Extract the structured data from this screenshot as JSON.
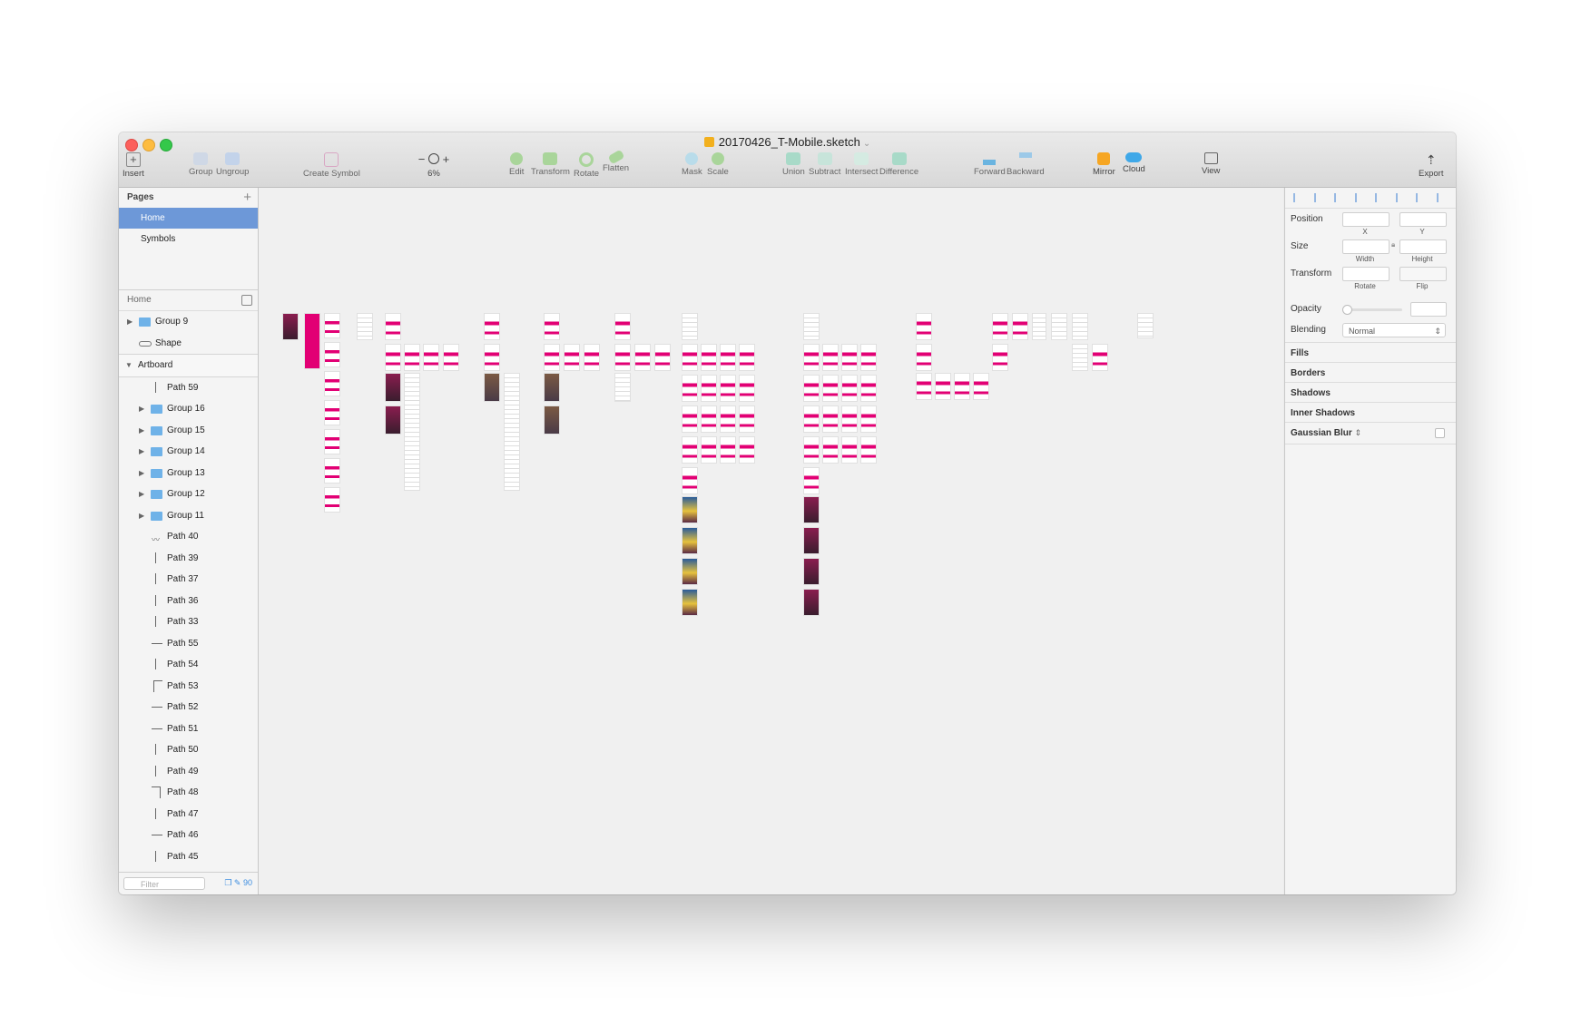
{
  "window": {
    "title": "20170426_T-Mobile.sketch"
  },
  "toolbar": {
    "insert": "Insert",
    "group": "Group",
    "ungroup": "Ungroup",
    "create_symbol": "Create Symbol",
    "zoom_level": "6%",
    "edit": "Edit",
    "transform": "Transform",
    "rotate": "Rotate",
    "flatten": "Flatten",
    "mask": "Mask",
    "scale": "Scale",
    "union": "Union",
    "subtract": "Subtract",
    "intersect": "Intersect",
    "difference": "Difference",
    "forward": "Forward",
    "backward": "Backward",
    "mirror": "Mirror",
    "cloud": "Cloud",
    "view": "View",
    "export": "Export"
  },
  "pages": {
    "header": "Pages",
    "items": [
      "Home",
      "Symbols"
    ]
  },
  "layers": {
    "header": "Home",
    "items": [
      {
        "name": "Group 9"
      },
      {
        "name": "Shape"
      },
      {
        "name": "Artboard"
      },
      {
        "name": "Path 59"
      },
      {
        "name": "Group 16"
      },
      {
        "name": "Group 15"
      },
      {
        "name": "Group 14"
      },
      {
        "name": "Group 13"
      },
      {
        "name": "Group 12"
      },
      {
        "name": "Group 11"
      },
      {
        "name": "Path 40"
      },
      {
        "name": "Path 39"
      },
      {
        "name": "Path 37"
      },
      {
        "name": "Path 36"
      },
      {
        "name": "Path 33"
      },
      {
        "name": "Path 55"
      },
      {
        "name": "Path 54"
      },
      {
        "name": "Path 53"
      },
      {
        "name": "Path 52"
      },
      {
        "name": "Path 51"
      },
      {
        "name": "Path 50"
      },
      {
        "name": "Path 49"
      },
      {
        "name": "Path 48"
      },
      {
        "name": "Path 47"
      },
      {
        "name": "Path 46"
      },
      {
        "name": "Path 45"
      }
    ],
    "filter_placeholder": "Filter",
    "count": "90"
  },
  "inspector": {
    "position": "Position",
    "x": "X",
    "y": "Y",
    "size": "Size",
    "width": "Width",
    "height": "Height",
    "transform": "Transform",
    "rotate": "Rotate",
    "flip": "Flip",
    "opacity": "Opacity",
    "blending": "Blending",
    "blending_value": "Normal",
    "fills": "Fills",
    "borders": "Borders",
    "shadows": "Shadows",
    "inner_shadows": "Inner Shadows",
    "gaussian_blur": "Gaussian Blur"
  },
  "colors": {
    "accent": "#e20074",
    "selection": "#6d98d8",
    "folder": "#6fb2e8"
  }
}
